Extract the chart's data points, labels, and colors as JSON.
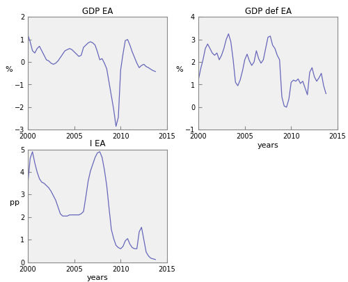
{
  "title1": "GDP EA",
  "title2": "GDP def EA",
  "title3": "I EA",
  "ylabel1": "%",
  "ylabel2": "%",
  "ylabel3": "pp",
  "xlabel3": "years",
  "xlabel2": "years",
  "xlim": [
    2000,
    2015
  ],
  "ylim1": [
    -3,
    2
  ],
  "ylim2": [
    -1,
    4
  ],
  "ylim3": [
    0,
    5
  ],
  "line_color": "#6666bb",
  "bg_color": "#f0f0f0",
  "gdp_ea": {
    "x": [
      2000.0,
      2000.25,
      2000.5,
      2000.75,
      2001.0,
      2001.25,
      2001.5,
      2001.75,
      2002.0,
      2002.25,
      2002.5,
      2002.75,
      2003.0,
      2003.25,
      2003.5,
      2003.75,
      2004.0,
      2004.25,
      2004.5,
      2004.75,
      2005.0,
      2005.25,
      2005.5,
      2005.75,
      2006.0,
      2006.25,
      2006.5,
      2006.75,
      2007.0,
      2007.25,
      2007.5,
      2007.75,
      2008.0,
      2008.25,
      2008.5,
      2008.75,
      2009.0,
      2009.25,
      2009.5,
      2009.75,
      2010.0,
      2010.25,
      2010.5,
      2010.75,
      2011.0,
      2011.25,
      2011.5,
      2011.75,
      2012.0,
      2012.25,
      2012.5,
      2012.75,
      2013.0,
      2013.25,
      2013.5,
      2013.75
    ],
    "y": [
      1.2,
      0.9,
      0.5,
      0.4,
      0.6,
      0.7,
      0.5,
      0.3,
      0.1,
      0.05,
      -0.05,
      -0.1,
      -0.05,
      0.05,
      0.2,
      0.35,
      0.5,
      0.55,
      0.6,
      0.55,
      0.45,
      0.35,
      0.25,
      0.3,
      0.65,
      0.75,
      0.85,
      0.9,
      0.85,
      0.75,
      0.45,
      0.1,
      0.15,
      -0.05,
      -0.3,
      -0.9,
      -1.5,
      -2.1,
      -2.85,
      -2.45,
      -0.35,
      0.35,
      0.95,
      1.0,
      0.75,
      0.45,
      0.2,
      -0.05,
      -0.25,
      -0.15,
      -0.1,
      -0.2,
      -0.25,
      -0.32,
      -0.38,
      -0.42
    ]
  },
  "gdp_def_ea": {
    "x": [
      2000.0,
      2000.25,
      2000.5,
      2000.75,
      2001.0,
      2001.25,
      2001.5,
      2001.75,
      2002.0,
      2002.25,
      2002.5,
      2002.75,
      2003.0,
      2003.25,
      2003.5,
      2003.75,
      2004.0,
      2004.25,
      2004.5,
      2004.75,
      2005.0,
      2005.25,
      2005.5,
      2005.75,
      2006.0,
      2006.25,
      2006.5,
      2006.75,
      2007.0,
      2007.25,
      2007.5,
      2007.75,
      2008.0,
      2008.25,
      2008.5,
      2008.75,
      2009.0,
      2009.25,
      2009.5,
      2009.75,
      2010.0,
      2010.25,
      2010.5,
      2010.75,
      2011.0,
      2011.25,
      2011.5,
      2011.75,
      2012.0,
      2012.25,
      2012.5,
      2012.75,
      2013.0,
      2013.25,
      2013.5,
      2013.75
    ],
    "y": [
      1.2,
      1.7,
      2.1,
      2.6,
      2.8,
      2.6,
      2.4,
      2.3,
      2.4,
      2.1,
      2.3,
      2.6,
      3.0,
      3.25,
      2.9,
      2.1,
      1.1,
      0.95,
      1.2,
      1.6,
      2.1,
      2.35,
      2.05,
      1.85,
      2.0,
      2.5,
      2.15,
      1.95,
      2.1,
      2.6,
      3.1,
      3.15,
      2.75,
      2.6,
      2.3,
      2.1,
      0.45,
      0.05,
      0.0,
      0.35,
      1.1,
      1.2,
      1.15,
      1.25,
      1.05,
      1.15,
      0.85,
      0.55,
      1.55,
      1.75,
      1.35,
      1.15,
      1.3,
      1.5,
      0.95,
      0.6
    ]
  },
  "i_ea": {
    "x": [
      2000.0,
      2000.25,
      2000.5,
      2000.75,
      2001.0,
      2001.25,
      2001.5,
      2001.75,
      2002.0,
      2002.25,
      2002.5,
      2002.75,
      2003.0,
      2003.25,
      2003.5,
      2003.75,
      2004.0,
      2004.25,
      2004.5,
      2004.75,
      2005.0,
      2005.25,
      2005.5,
      2005.75,
      2006.0,
      2006.25,
      2006.5,
      2006.75,
      2007.0,
      2007.25,
      2007.5,
      2007.75,
      2008.0,
      2008.25,
      2008.5,
      2008.75,
      2009.0,
      2009.25,
      2009.5,
      2009.75,
      2010.0,
      2010.25,
      2010.5,
      2010.75,
      2011.0,
      2011.25,
      2011.5,
      2011.75,
      2012.0,
      2012.25,
      2012.5,
      2012.75,
      2013.0,
      2013.25,
      2013.5,
      2013.75
    ],
    "y": [
      3.5,
      4.6,
      4.9,
      4.4,
      4.0,
      3.7,
      3.55,
      3.5,
      3.4,
      3.3,
      3.15,
      2.95,
      2.75,
      2.45,
      2.15,
      2.05,
      2.05,
      2.05,
      2.1,
      2.1,
      2.1,
      2.1,
      2.1,
      2.15,
      2.25,
      2.9,
      3.6,
      4.05,
      4.35,
      4.65,
      4.85,
      4.9,
      4.65,
      4.1,
      3.4,
      2.4,
      1.45,
      1.05,
      0.75,
      0.65,
      0.6,
      0.7,
      0.95,
      1.05,
      0.8,
      0.65,
      0.6,
      0.6,
      1.35,
      1.55,
      1.0,
      0.45,
      0.28,
      0.18,
      0.15,
      0.12
    ]
  }
}
